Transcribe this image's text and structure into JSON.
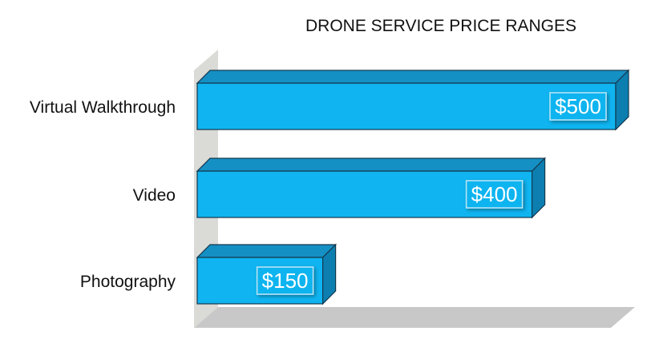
{
  "chart_data": {
    "type": "bar",
    "orientation": "horizontal",
    "title": "DRONE SERVICE PRICE RANGES",
    "categories": [
      "Virtual Walkthrough",
      "Video",
      "Photography"
    ],
    "values": [
      500,
      400,
      150
    ],
    "value_labels": [
      "$500",
      "$400",
      "$150"
    ],
    "xlim": [
      0,
      500
    ],
    "grid": false,
    "legend": "none",
    "colors": {
      "bar_front": "#0fb4f0",
      "bar_top": "#1590c4",
      "bar_side": "#0c7fb0",
      "bar_outline": "#14374d",
      "floor": "#c8c8c8",
      "wall": "#dadad6"
    }
  }
}
